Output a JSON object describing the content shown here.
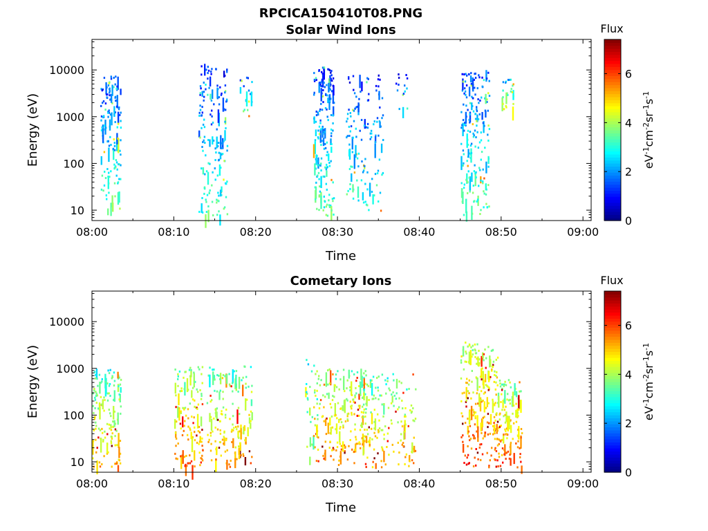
{
  "figure_title": "RPCICA150410T08.PNG",
  "colormap": [
    "#00007f",
    "#0000ff",
    "#007fff",
    "#00ffff",
    "#7fff7f",
    "#ffff00",
    "#ff7f00",
    "#ff0000",
    "#7f0000"
  ],
  "chart_data": [
    {
      "type": "heatmap",
      "title": "Solar Wind Ions",
      "xlabel": "Time",
      "ylabel": "Energy (eV)",
      "y_scale": "log",
      "ylim": [
        6,
        45000
      ],
      "xlim": [
        "08:00",
        "09:01"
      ],
      "x_ticks": [
        "08:00",
        "08:10",
        "08:20",
        "08:30",
        "08:40",
        "08:50",
        "09:00"
      ],
      "y_ticks": [
        "10",
        "100",
        "1000",
        "10000"
      ],
      "colorbar": {
        "title": "Flux",
        "label": "eV-1cm-2sr-1s-1",
        "range": [
          0,
          7.4
        ],
        "ticks": [
          "0",
          "2",
          "4",
          "6"
        ]
      },
      "bursts": [
        {
          "t": [
            "08:01",
            "08:03"
          ],
          "e": [
            10,
            8000
          ],
          "flux": 2.4,
          "n": 150
        },
        {
          "t": [
            "08:13",
            "08:16"
          ],
          "e": [
            8,
            14000
          ],
          "flux": 2.2,
          "n": 170
        },
        {
          "t": [
            "08:18",
            "08:19"
          ],
          "e": [
            1000,
            8000
          ],
          "flux": 2.6,
          "n": 20
        },
        {
          "t": [
            "08:27",
            "08:29"
          ],
          "e": [
            8,
            12000
          ],
          "flux": 2.3,
          "n": 190
        },
        {
          "t": [
            "08:31",
            "08:35"
          ],
          "e": [
            10,
            8000
          ],
          "flux": 2.2,
          "n": 140
        },
        {
          "t": [
            "08:37",
            "08:38"
          ],
          "e": [
            1000,
            10000
          ],
          "flux": 2.0,
          "n": 15
        },
        {
          "t": [
            "08:45",
            "08:48"
          ],
          "e": [
            8,
            10000
          ],
          "flux": 2.5,
          "n": 200
        },
        {
          "t": [
            "08:50",
            "08:51"
          ],
          "e": [
            1500,
            8000
          ],
          "flux": 3.2,
          "n": 25
        }
      ]
    },
    {
      "type": "heatmap",
      "title": "Cometary Ions",
      "xlabel": "Time",
      "ylabel": "Energy (eV)",
      "y_scale": "log",
      "ylim": [
        6,
        45000
      ],
      "xlim": [
        "08:00",
        "09:01"
      ],
      "x_ticks": [
        "08:00",
        "08:10",
        "08:20",
        "08:30",
        "08:40",
        "08:50",
        "09:00"
      ],
      "y_ticks": [
        "10",
        "100",
        "1000",
        "10000"
      ],
      "colorbar": {
        "title": "Flux",
        "label": "eV-1cm-2sr-1s-1",
        "range": [
          0,
          7.4
        ],
        "ticks": [
          "0",
          "2",
          "4",
          "6"
        ]
      },
      "bursts": [
        {
          "t": [
            "08:00",
            "08:03"
          ],
          "e": [
            8,
            1000
          ],
          "flux": 4.2,
          "n": 150
        },
        {
          "t": [
            "08:10",
            "08:13"
          ],
          "e": [
            8,
            1200
          ],
          "flux": 4.6,
          "n": 140
        },
        {
          "t": [
            "08:14",
            "08:19"
          ],
          "e": [
            8,
            1200
          ],
          "flux": 4.3,
          "n": 170
        },
        {
          "t": [
            "08:26",
            "08:27"
          ],
          "e": [
            8,
            2000
          ],
          "flux": 3.5,
          "n": 25
        },
        {
          "t": [
            "08:27",
            "08:33"
          ],
          "e": [
            8,
            1000
          ],
          "flux": 4.6,
          "n": 220
        },
        {
          "t": [
            "08:33",
            "08:39"
          ],
          "e": [
            8,
            800
          ],
          "flux": 4.3,
          "n": 170
        },
        {
          "t": [
            "08:45",
            "08:49"
          ],
          "e": [
            8,
            4000
          ],
          "flux": 5.0,
          "n": 230
        },
        {
          "t": [
            "08:49",
            "08:52"
          ],
          "e": [
            8,
            600
          ],
          "flux": 4.8,
          "n": 150
        }
      ]
    }
  ]
}
